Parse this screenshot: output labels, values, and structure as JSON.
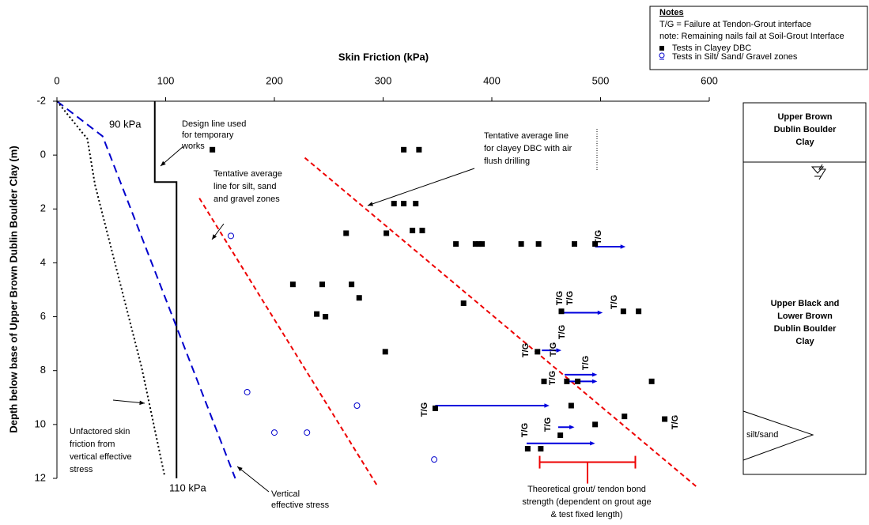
{
  "chart_data": {
    "type": "scatter",
    "x_label": "Skin Friction (kPa)",
    "y_label": "Depth below base of Upper Brown Dublin Boulder Clay (m)",
    "xlim": [
      0,
      600
    ],
    "xticks": [
      0,
      100,
      200,
      300,
      400,
      500,
      600
    ],
    "ylim": [
      -2,
      12
    ],
    "yticks": [
      -2,
      0,
      2,
      4,
      6,
      8,
      10,
      12
    ],
    "y_inverted": true,
    "series": [
      {
        "name": "Tests in Clayey DBC",
        "marker": "square",
        "color": "#000000",
        "x": [
          143,
          319,
          333,
          310,
          319,
          330,
          266,
          303,
          327,
          336,
          367,
          385,
          388,
          391,
          427,
          443,
          476,
          495,
          217,
          244,
          271,
          278,
          239,
          247,
          374,
          302,
          442,
          448,
          469,
          479,
          521,
          535,
          547,
          348,
          473,
          463,
          495,
          522,
          559,
          433,
          445,
          464
        ],
        "values": [
          -0.2,
          -0.2,
          -0.2,
          1.8,
          1.8,
          1.8,
          2.9,
          2.9,
          2.8,
          2.8,
          3.3,
          3.3,
          3.3,
          3.3,
          3.3,
          3.3,
          3.3,
          3.3,
          4.8,
          4.8,
          4.8,
          5.3,
          5.9,
          6.0,
          5.5,
          7.3,
          7.3,
          8.4,
          8.4,
          8.4,
          5.8,
          5.8,
          8.4,
          9.4,
          9.3,
          10.4,
          10.0,
          9.7,
          9.8,
          10.9,
          10.9,
          5.8
        ]
      },
      {
        "name": "Tests in Silt/ Sand/ Gravel zones",
        "marker": "circle",
        "color": "#0000cc",
        "x": [
          160,
          175,
          276,
          200,
          230,
          347
        ],
        "values": [
          3.0,
          8.8,
          9.3,
          10.3,
          10.3,
          11.3
        ]
      }
    ],
    "lines": [
      {
        "name": "design",
        "color": "#000000",
        "dash": "none",
        "x": [
          90,
          90,
          110,
          110
        ],
        "values": [
          -2,
          1,
          1,
          12
        ]
      },
      {
        "name": "vertical",
        "color": "#0000cc",
        "dash": "10,6",
        "x": [
          0,
          42,
          164
        ],
        "values": [
          -2,
          -0.7,
          12
        ]
      },
      {
        "name": "unfactored",
        "color": "#000000",
        "dash": "2,3",
        "x": [
          0,
          28,
          35,
          78,
          99
        ],
        "values": [
          -2,
          -0.6,
          1.1,
          7.9,
          11.9
        ]
      },
      {
        "name": "silt",
        "color": "#ee0000",
        "dash": "6,4",
        "x": [
          131,
          295
        ],
        "values": [
          1.6,
          12.3
        ]
      },
      {
        "name": "clayey",
        "color": "#ee0000",
        "dash": "6,4",
        "x": [
          228,
          588
        ],
        "values": [
          0.1,
          12.3
        ]
      }
    ],
    "arrows": {
      "color": "#0000dd",
      "x_start": [
        495,
        464,
        446,
        467,
        467,
        348,
        461,
        432
      ],
      "x_end": [
        523,
        502,
        464,
        497,
        497,
        453,
        476,
        495
      ],
      "values": [
        3.4,
        5.85,
        7.25,
        8.15,
        8.4,
        9.3,
        10.1,
        10.7
      ]
    },
    "bond_range": {
      "color": "#ee0000",
      "x": [
        444,
        532
      ],
      "values": [
        11.4,
        11.4
      ]
    },
    "tg_labels": [
      "T/G",
      "T/G",
      "T/G",
      "T/G",
      "T/G",
      "T/G",
      "T/G",
      "T/G",
      "T/G",
      "T/G",
      "T/G",
      "T/G",
      "T/G"
    ],
    "annotations": [
      {
        "lines": [
          "90 kPa"
        ]
      },
      {
        "lines": [
          "110 kPa"
        ]
      },
      {
        "lines": [
          "Design line used",
          "for temporary",
          "works"
        ]
      },
      {
        "lines": [
          "Tentative average",
          "line for silt, sand",
          "and gravel zones"
        ]
      },
      {
        "lines": [
          "Tentative average line",
          "for clayey DBC with air",
          "flush drilling"
        ]
      },
      {
        "lines": [
          "Unfactored skin",
          "friction from",
          "vertical effective",
          "stress"
        ]
      },
      {
        "lines": [
          "Vertical",
          "effective stress"
        ]
      },
      {
        "lines": [
          "Theoretical grout/ tendon bond",
          "strength (dependent on grout age",
          "& test fixed length)"
        ]
      }
    ],
    "notes": {
      "title": "Notes",
      "lines": [
        "T/G = Failure at Tendon-Grout interface",
        "note: Remaining nails fail at Soil-Grout Interface"
      ]
    },
    "strata": [
      {
        "lines": [
          "Upper Brown",
          "Dublin Boulder",
          "Clay"
        ]
      },
      {
        "lines": [
          "Upper Black and",
          "Lower Brown",
          "Dublin Boulder",
          "Clay"
        ]
      },
      {
        "lines": [
          "silt/sand"
        ]
      }
    ]
  }
}
